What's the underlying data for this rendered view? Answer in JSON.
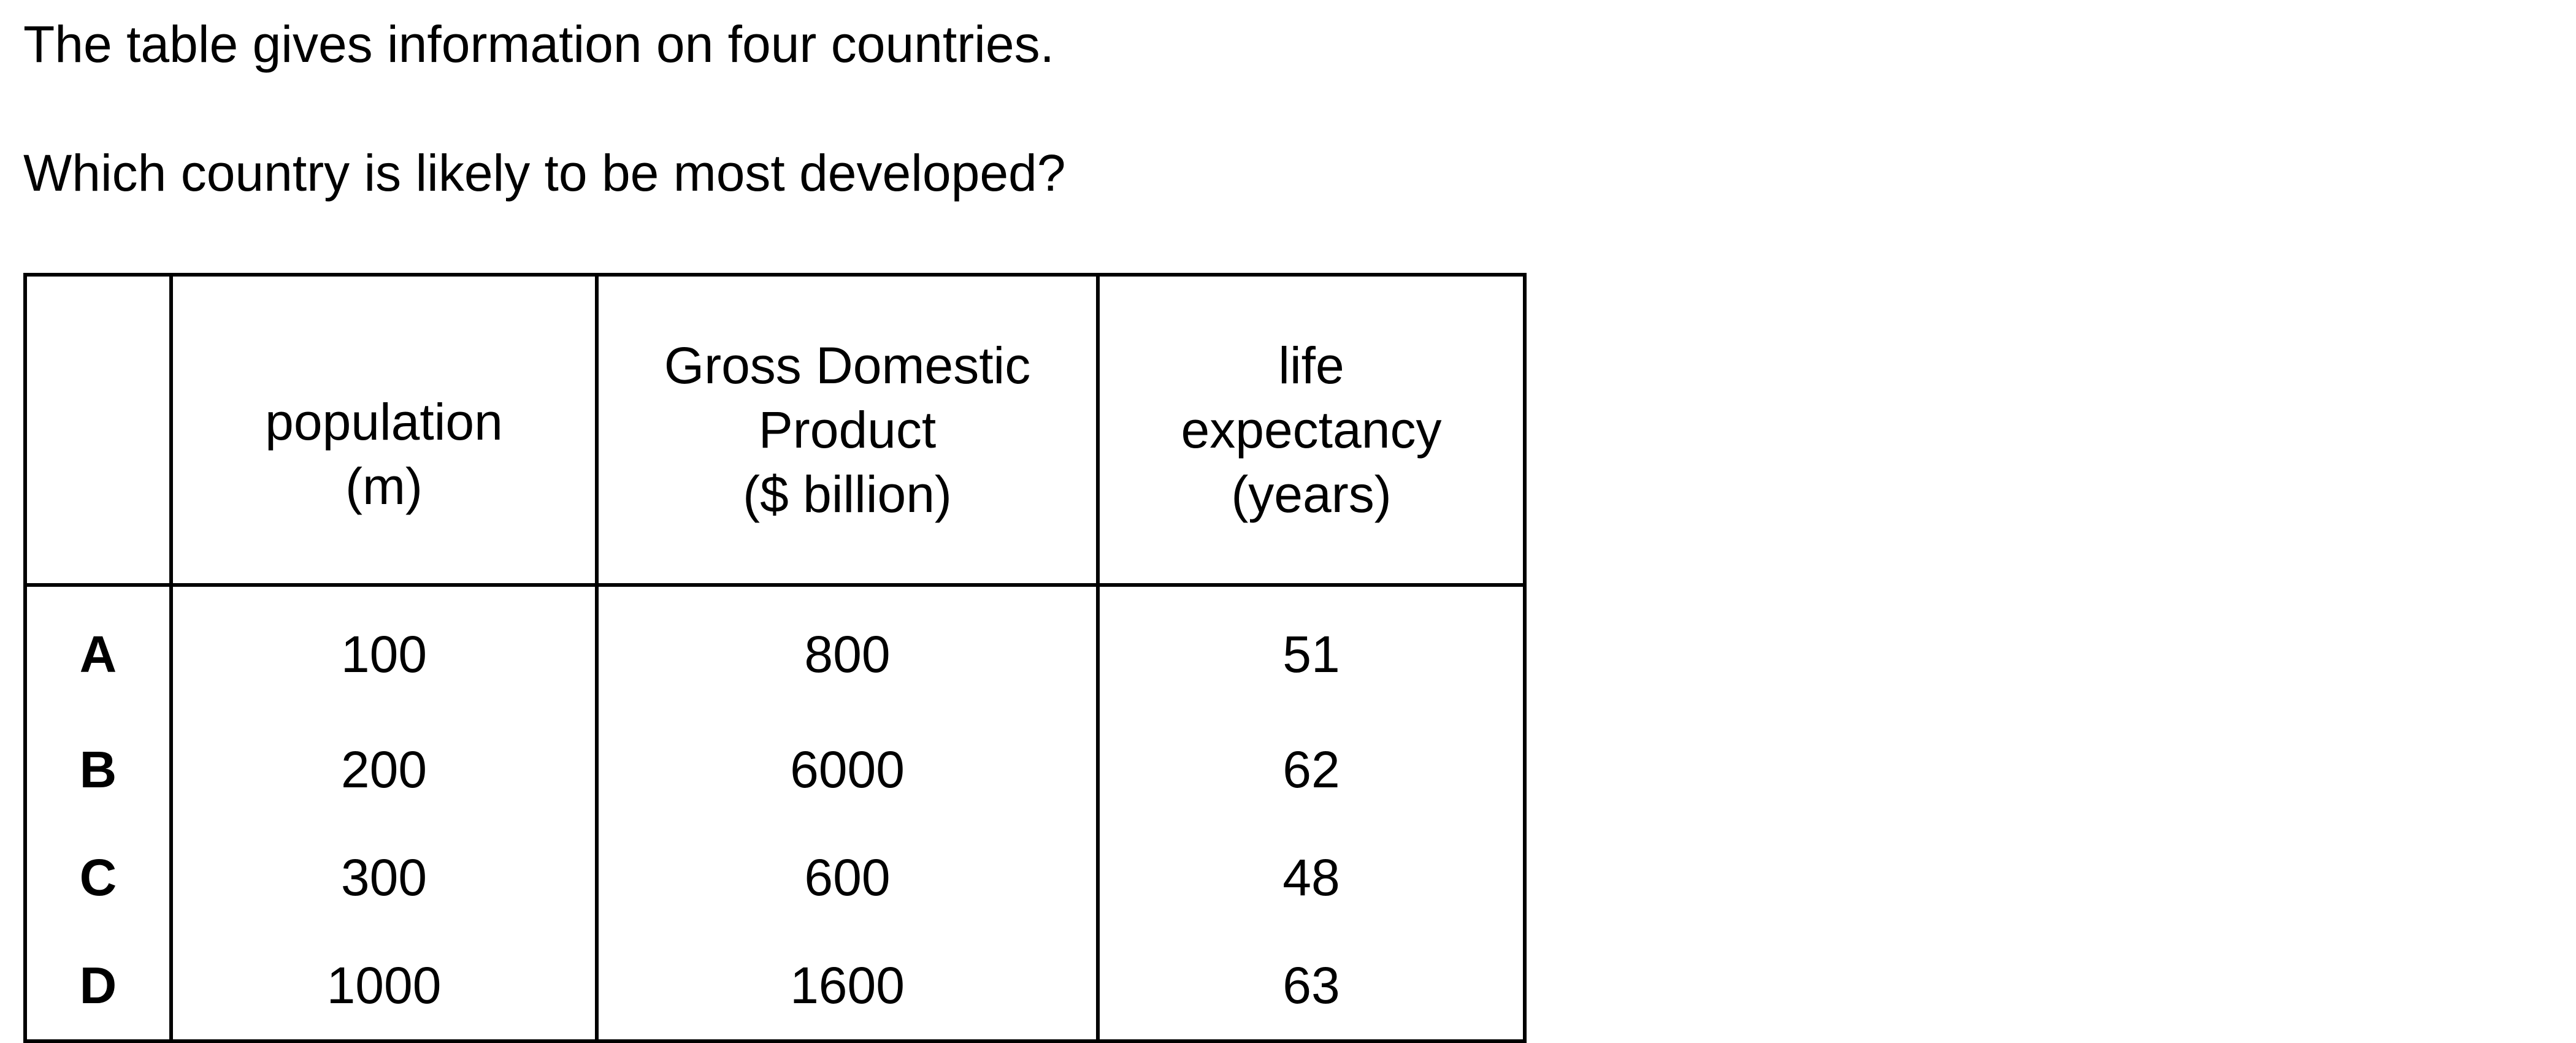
{
  "intro": "The table gives information on four countries.",
  "question": "Which country is likely to be most developed?",
  "table": {
    "headers": {
      "population": [
        "population",
        "(m)"
      ],
      "gdp": [
        "Gross Domestic",
        "Product",
        "($ billion)"
      ],
      "life": [
        "life",
        "expectancy",
        "(years)"
      ]
    },
    "rows": [
      {
        "label": "A",
        "population": "100",
        "gdp": "800",
        "life": "51"
      },
      {
        "label": "B",
        "population": "200",
        "gdp": "6000",
        "life": "62"
      },
      {
        "label": "C",
        "population": "300",
        "gdp": "600",
        "life": "48"
      },
      {
        "label": "D",
        "population": "1000",
        "gdp": "1600",
        "life": "63"
      }
    ]
  }
}
